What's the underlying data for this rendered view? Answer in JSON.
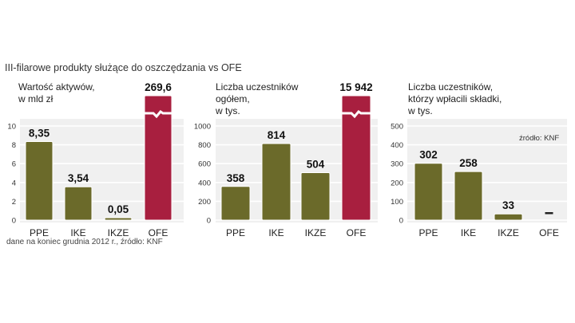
{
  "title": "III-filarowe produkty służące do oszczędzania vs OFE",
  "footnote": "dane na koniec grudnia 2012 r., źródło: KNF",
  "colors": {
    "pillar3": "#6b6a2a",
    "ofe": "#a81f3f",
    "panel": "#f0f0f0"
  },
  "chart_data": [
    {
      "type": "bar",
      "title": [
        "Wartość aktywów,",
        "w mld zł"
      ],
      "categories": [
        "PPE",
        "IKE",
        "IKZE",
        "OFE"
      ],
      "values": [
        8.35,
        3.54,
        0.05,
        269.6
      ],
      "value_labels": [
        "8,35",
        "3,54",
        "0,05",
        "269,6"
      ],
      "broken_axis": [
        false,
        false,
        false,
        true
      ],
      "yticks": [
        0,
        2,
        4,
        6,
        8,
        10
      ],
      "ylim": [
        0,
        10
      ],
      "source": ""
    },
    {
      "type": "bar",
      "title": [
        "Liczba uczestników",
        "ogółem,",
        "w tys."
      ],
      "categories": [
        "PPE",
        "IKE",
        "IKZE",
        "OFE"
      ],
      "values": [
        358,
        814,
        504,
        15942
      ],
      "value_labels": [
        "358",
        "814",
        "504",
        "15 942"
      ],
      "broken_axis": [
        false,
        false,
        false,
        true
      ],
      "yticks": [
        0,
        200,
        400,
        600,
        800,
        1000
      ],
      "ylim": [
        0,
        1000
      ],
      "source": ""
    },
    {
      "type": "bar",
      "title": [
        "Liczba uczestników,",
        "którzy wpłacili składki,",
        "w tys."
      ],
      "categories": [
        "PPE",
        "IKE",
        "IKZE",
        "OFE"
      ],
      "values": [
        302,
        258,
        33,
        null
      ],
      "value_labels": [
        "302",
        "258",
        "33",
        "–"
      ],
      "broken_axis": [
        false,
        false,
        false,
        false
      ],
      "yticks": [
        0,
        100,
        200,
        300,
        400,
        500
      ],
      "ylim": [
        0,
        500
      ],
      "source": "źródło: KNF"
    }
  ]
}
